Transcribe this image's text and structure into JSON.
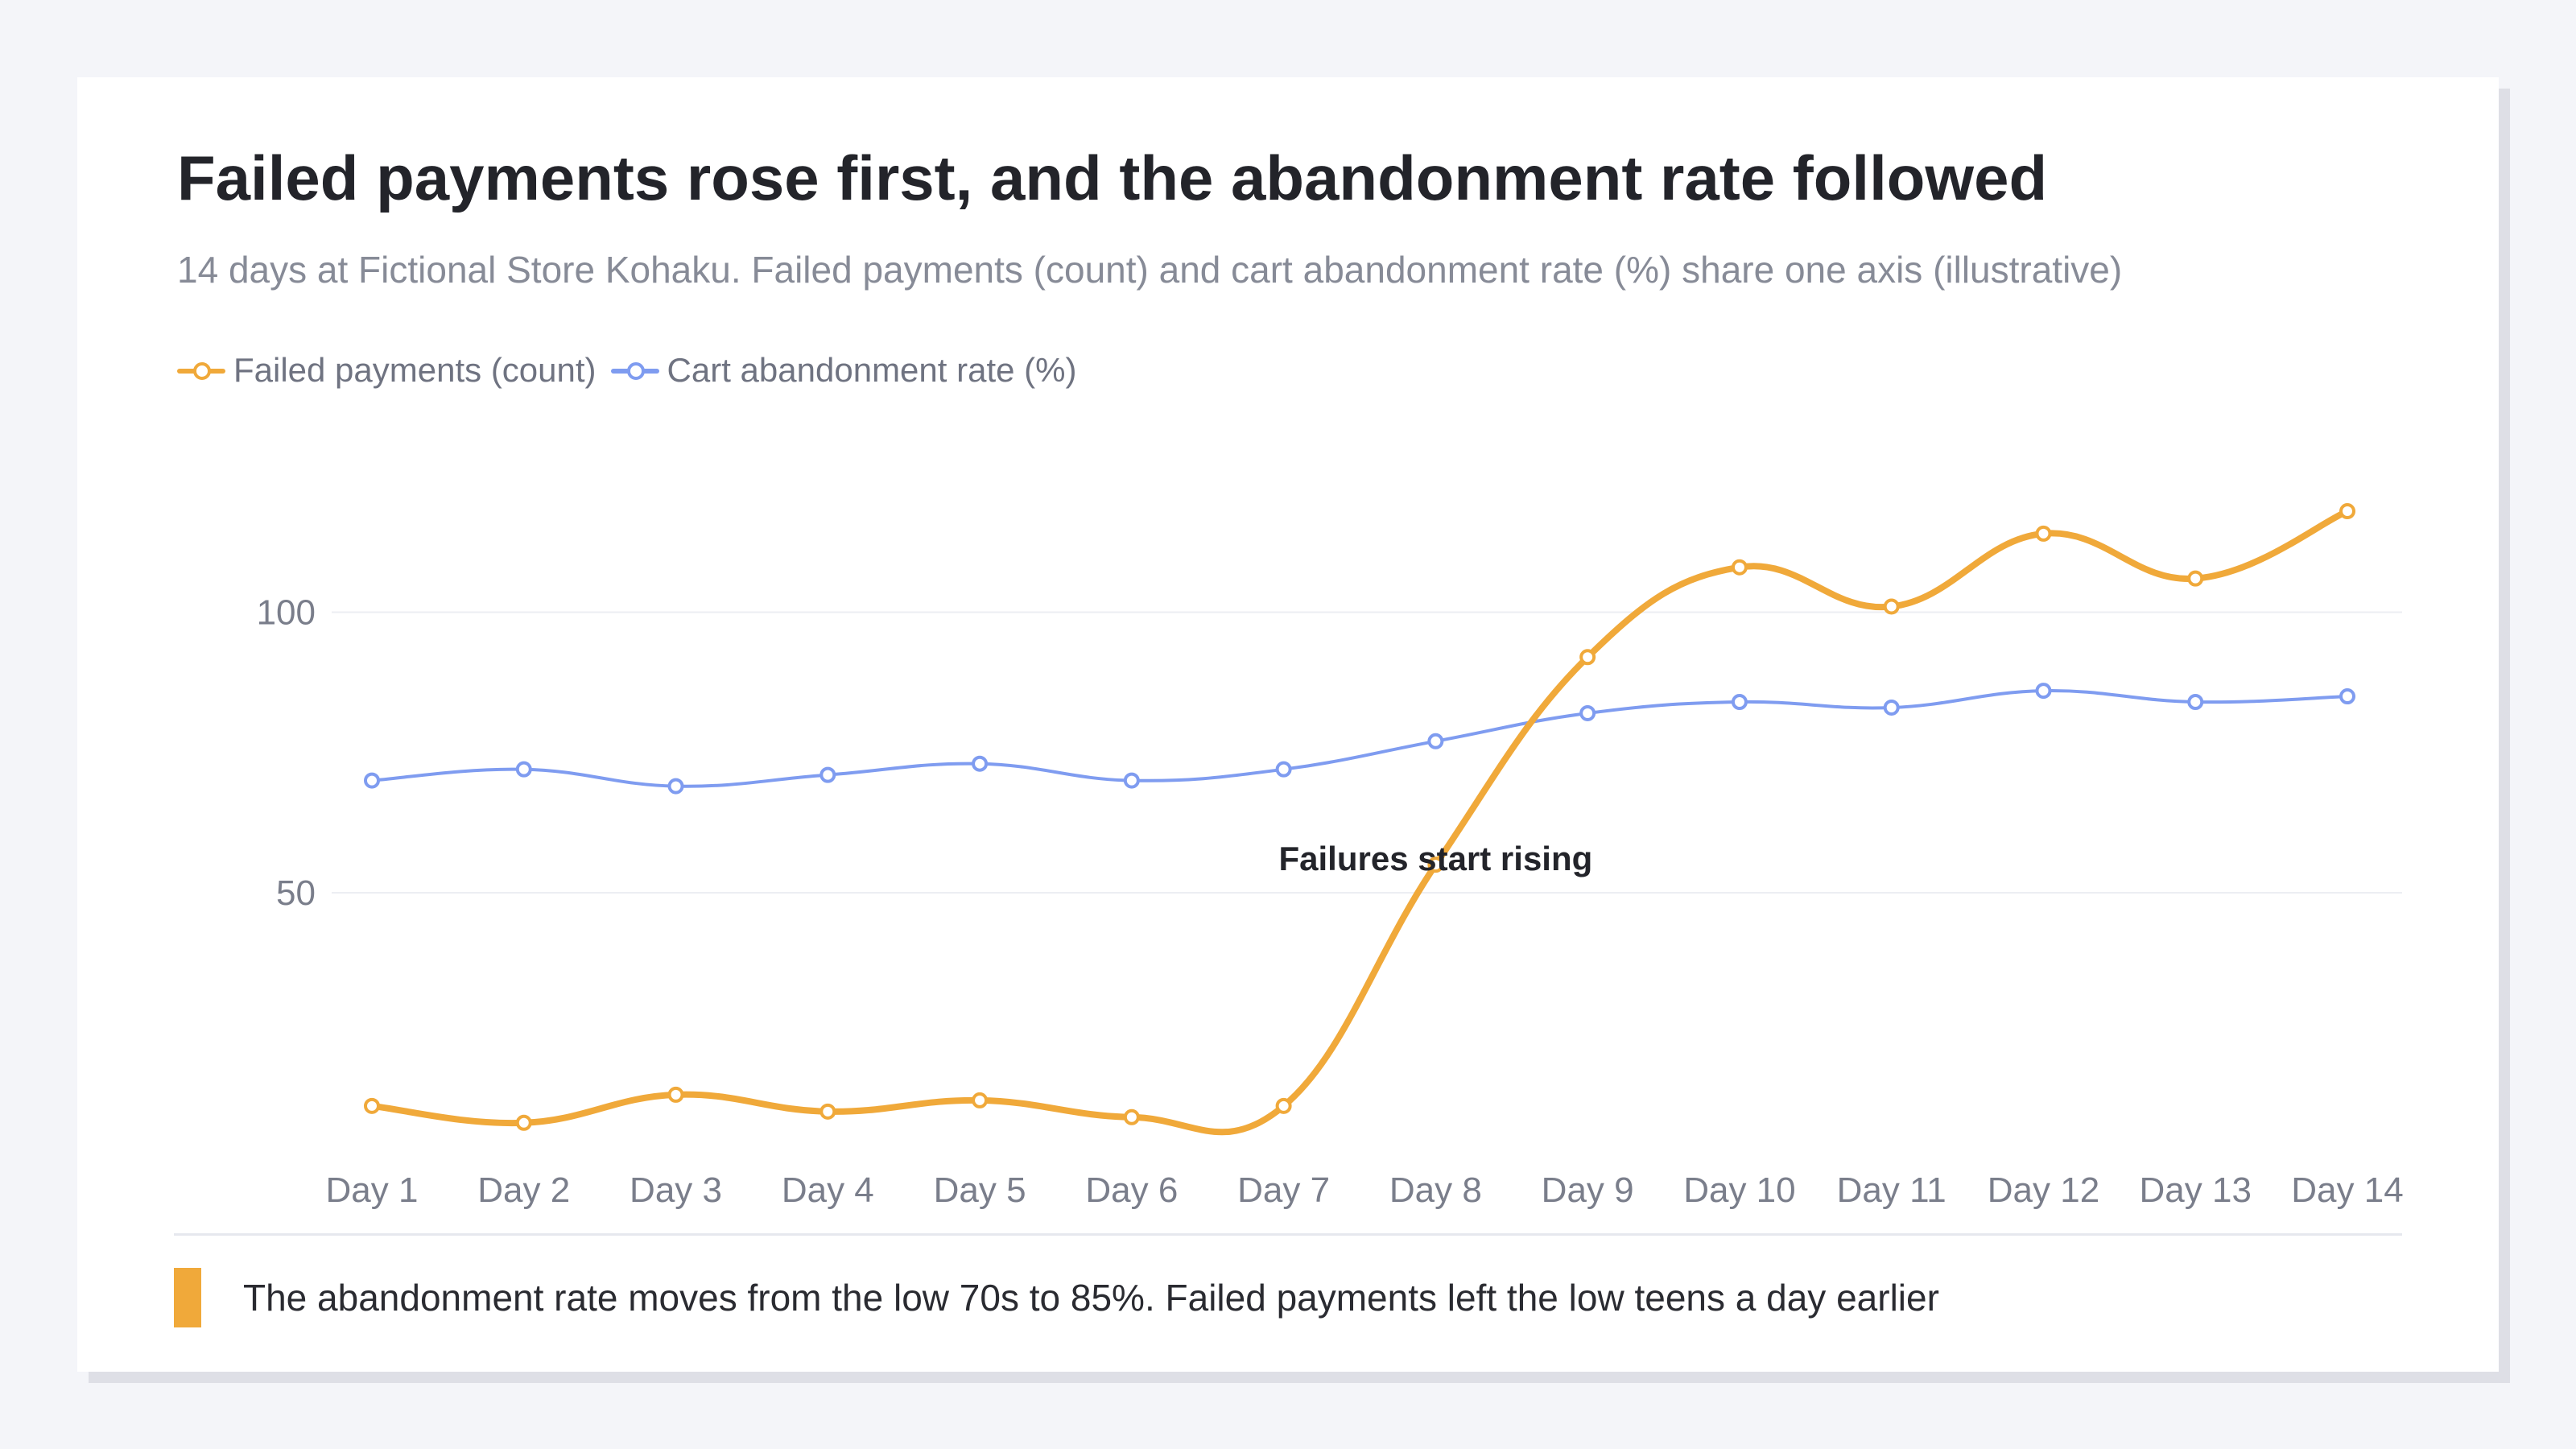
{
  "title": "Failed payments rose first, and the abandonment rate followed",
  "subtitle": "14 days at Fictional Store Kohaku. Failed payments (count) and cart abandonment rate (%) share one axis (illustrative)",
  "note": "The abandonment rate moves from the low 70s to 85%. Failed payments left the low teens a day earlier",
  "colors": {
    "failed": "#f0a93a",
    "abandon": "#7f9cf0",
    "grid": "#eceef3",
    "tick": "#7a7e8b",
    "annotation": "#23242a"
  },
  "chart_data": {
    "type": "line",
    "categories": [
      "Day 1",
      "Day 2",
      "Day 3",
      "Day 4",
      "Day 5",
      "Day 6",
      "Day 7",
      "Day 8",
      "Day 9",
      "Day 10",
      "Day 11",
      "Day 12",
      "Day 13",
      "Day 14"
    ],
    "series": [
      {
        "name": "Failed payments (count)",
        "color": "#f0a93a",
        "values": [
          12,
          9,
          14,
          11,
          13,
          10,
          12,
          55,
          92,
          108,
          101,
          114,
          106,
          118
        ]
      },
      {
        "name": "Cart abandonment rate (%)",
        "color": "#7f9cf0",
        "values": [
          70,
          72,
          69,
          71,
          73,
          70,
          72,
          77,
          82,
          84,
          83,
          86,
          84,
          85
        ]
      }
    ],
    "yticks": [
      50,
      100
    ],
    "ylim": [
      0,
      125
    ],
    "grid": true,
    "legend": "top-left",
    "annotation": {
      "text": "Failures start rising",
      "category": "Day 8"
    }
  }
}
